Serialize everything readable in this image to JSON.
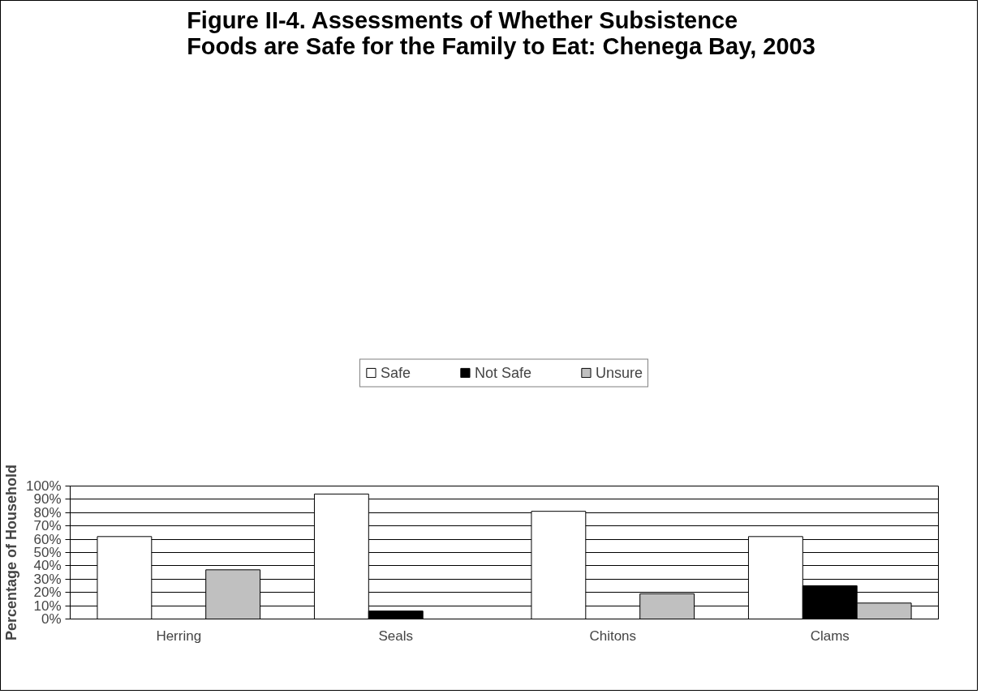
{
  "chart_data": {
    "type": "bar",
    "title": "Figure II-4. Assessments of Whether Subsistence Foods are Safe for the Family to Eat:  Chenega Bay, 2003",
    "ylabel": "Percentage of Household",
    "categories": [
      "Herring",
      "Seals",
      "Chitons",
      "Clams"
    ],
    "series": [
      {
        "name": "Safe",
        "color": "#ffffff",
        "values": [
          62,
          94,
          81,
          62
        ]
      },
      {
        "name": "Not Safe",
        "color": "#000000",
        "values": [
          null,
          6,
          null,
          25
        ]
      },
      {
        "name": "Unsure",
        "color": "#c0c0c0",
        "values": [
          37,
          null,
          19,
          12
        ]
      }
    ],
    "ylim": [
      0,
      100
    ],
    "yticks": [
      {
        "value": 0,
        "label": "0%"
      },
      {
        "value": 10,
        "label": "10%"
      },
      {
        "value": 20,
        "label": "20%"
      },
      {
        "value": 30,
        "label": "30%"
      },
      {
        "value": 40,
        "label": "40%"
      },
      {
        "value": 50,
        "label": "50%"
      },
      {
        "value": 60,
        "label": "60%"
      },
      {
        "value": 70,
        "label": "70%"
      },
      {
        "value": 80,
        "label": "80%"
      },
      {
        "value": 90,
        "label": "90%"
      },
      {
        "value": 100,
        "label": "100%"
      }
    ],
    "grid": "y",
    "legend": "top"
  }
}
